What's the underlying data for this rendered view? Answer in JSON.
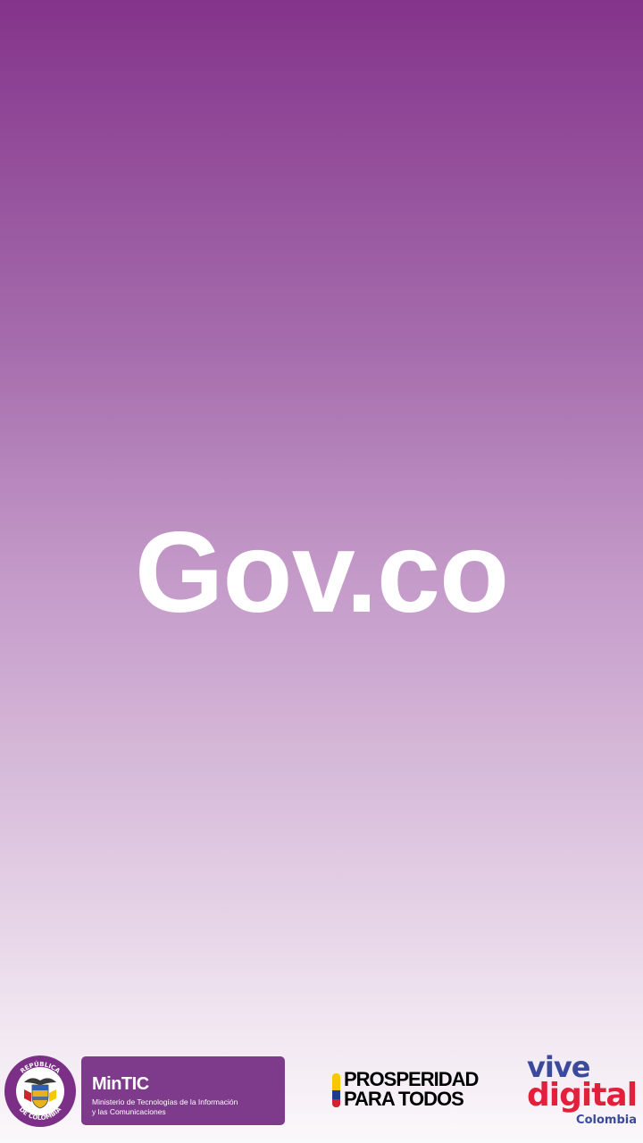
{
  "splash": {
    "title": "Gov.co"
  },
  "footer": {
    "seal": {
      "icon": "coat-of-arms-icon",
      "ring_text_top": "REPÚBLICA",
      "ring_text_bottom": "DE COLOMBIA"
    },
    "mintic": {
      "name": "MinTIC",
      "description_line1": "Ministerio de Tecnologías de la Información",
      "description_line2": "y las Comunicaciones"
    },
    "prosperidad": {
      "line1": "PROSPERIDAD",
      "line2": "PARA TODOS",
      "flag_colors": [
        "#f7c800",
        "#1b3d8f",
        "#d5202e"
      ]
    },
    "vive_digital": {
      "line1": "vive",
      "line2": "digital",
      "line3": "Colombia"
    }
  },
  "colors": {
    "gradient_top": "#84348b",
    "gradient_bottom": "#fbf8fb",
    "mintic_box": "#7e3a8b",
    "vive_blue": "#3b4a9c",
    "vive_red": "#e2203b"
  }
}
